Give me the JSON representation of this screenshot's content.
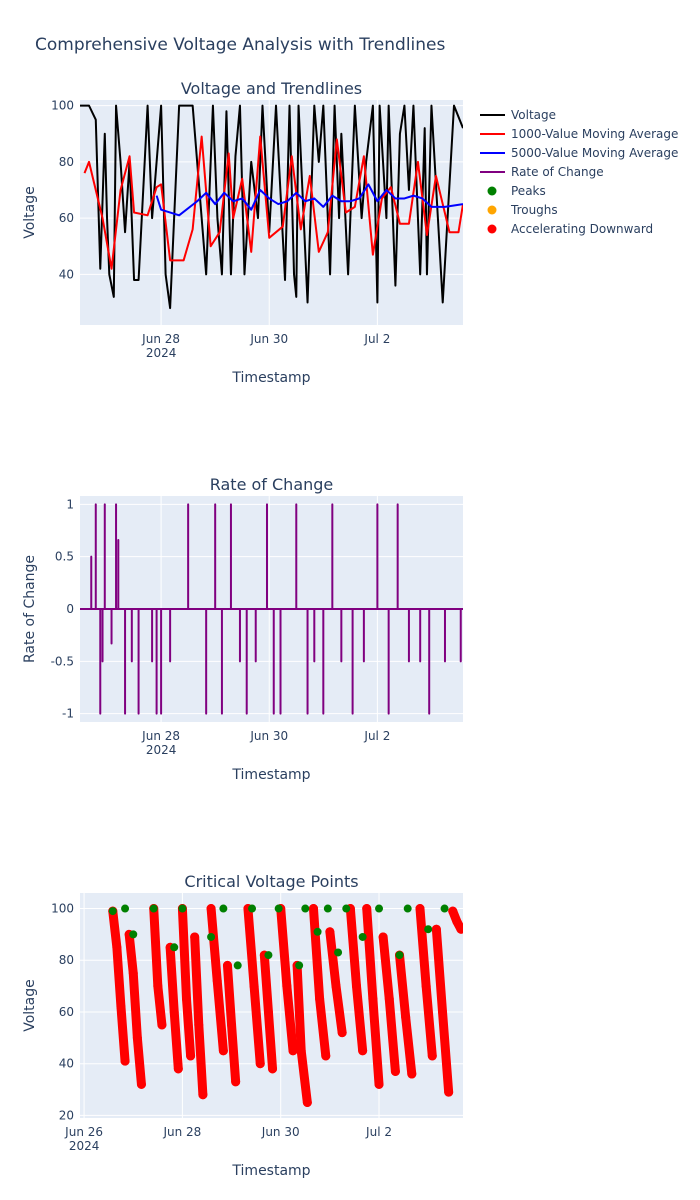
{
  "title": "Comprehensive Voltage Analysis with Trendlines",
  "colors": {
    "plot_bg": "#e5ecf6",
    "grid": "#ffffff",
    "voltage": "#000000",
    "ma1000": "#ff0000",
    "ma5000": "#0000ff",
    "rate": "#800080",
    "peaks": "#008000",
    "troughs": "#ffa500",
    "accel": "#ff0000"
  },
  "legend": {
    "position": "top-right",
    "entries": [
      {
        "label": "Voltage",
        "kind": "line",
        "color": "#000000"
      },
      {
        "label": "1000-Value Moving Average",
        "kind": "line",
        "color": "#ff0000"
      },
      {
        "label": "5000-Value Moving Average",
        "kind": "line",
        "color": "#0000ff"
      },
      {
        "label": "Rate of Change",
        "kind": "line",
        "color": "#800080"
      },
      {
        "label": "Peaks",
        "kind": "marker",
        "color": "#008000"
      },
      {
        "label": "Troughs",
        "kind": "marker",
        "color": "#ffa500"
      },
      {
        "label": "Accelerating Downward",
        "kind": "marker",
        "color": "#ff0000"
      }
    ]
  },
  "chart_data": [
    {
      "type": "line",
      "title": "Voltage and Trendlines",
      "xlabel": "Timestamp",
      "ylabel": "Voltage",
      "xlim": [
        "2024-06-26 12:00",
        "2024-07-03 14:00"
      ],
      "ylim": [
        22,
        102
      ],
      "grid": true,
      "x_ticks": [
        "Jun 28",
        "Jun 30",
        "Jul 2"
      ],
      "x_tick_values": [
        "2024-06-28",
        "2024-06-30",
        "2024-07-02"
      ],
      "x_year_label": "2024",
      "y_ticks": [
        40,
        60,
        80,
        100
      ],
      "series": [
        {
          "name": "Voltage",
          "x": [
            "2024-06-26 12:00",
            "2024-06-26 16:00",
            "2024-06-26 19:00",
            "2024-06-26 21:00",
            "2024-06-26 23:00",
            "2024-06-27 00:00",
            "2024-06-27 01:00",
            "2024-06-27 03:00",
            "2024-06-27 04:00",
            "2024-06-27 06:00",
            "2024-06-27 08:00",
            "2024-06-27 10:00",
            "2024-06-27 12:00",
            "2024-06-27 14:00",
            "2024-06-27 18:00",
            "2024-06-27 20:00",
            "2024-06-27 22:00",
            "2024-06-28 00:00",
            "2024-06-28 02:00",
            "2024-06-28 04:00",
            "2024-06-28 08:00",
            "2024-06-28 14:00",
            "2024-06-28 20:00",
            "2024-06-28 23:00",
            "2024-06-29 01:00",
            "2024-06-29 03:00",
            "2024-06-29 05:00",
            "2024-06-29 07:00",
            "2024-06-29 09:00",
            "2024-06-29 11:00",
            "2024-06-29 13:00",
            "2024-06-29 16:00",
            "2024-06-29 19:00",
            "2024-06-29 21:00",
            "2024-06-30 00:00",
            "2024-06-30 03:00",
            "2024-06-30 07:00",
            "2024-06-30 09:00",
            "2024-06-30 11:00",
            "2024-06-30 12:00",
            "2024-06-30 13:00",
            "2024-06-30 17:00",
            "2024-06-30 20:00",
            "2024-06-30 22:00",
            "2024-07-01 00:00",
            "2024-07-01 03:00",
            "2024-07-01 05:00",
            "2024-07-01 07:00",
            "2024-07-01 08:00",
            "2024-07-01 11:00",
            "2024-07-01 14:00",
            "2024-07-01 17:00",
            "2024-07-01 19:00",
            "2024-07-01 22:00",
            "2024-07-02 00:00",
            "2024-07-02 01:00",
            "2024-07-02 04:00",
            "2024-07-02 05:00",
            "2024-07-02 08:00",
            "2024-07-02 10:00",
            "2024-07-02 12:00",
            "2024-07-02 14:00",
            "2024-07-02 16:00",
            "2024-07-02 19:00",
            "2024-07-02 21:00",
            "2024-07-02 22:00",
            "2024-07-03 00:00",
            "2024-07-03 05:00",
            "2024-07-03 10:00",
            "2024-07-03 14:00"
          ],
          "values": [
            100,
            100,
            95,
            42,
            90,
            60,
            40,
            32,
            100,
            80,
            55,
            80,
            38,
            38,
            100,
            60,
            80,
            100,
            40,
            28,
            100,
            100,
            40,
            100,
            60,
            40,
            98,
            40,
            82,
            100,
            40,
            80,
            60,
            100,
            55,
            100,
            38,
            100,
            40,
            32,
            100,
            30,
            100,
            80,
            100,
            40,
            100,
            60,
            90,
            40,
            100,
            60,
            80,
            100,
            30,
            100,
            60,
            100,
            36,
            90,
            100,
            70,
            100,
            40,
            92,
            40,
            100,
            30,
            100,
            92
          ]
        },
        {
          "name": "1000-Value Moving Average",
          "x": [
            "2024-06-26 14:00",
            "2024-06-26 16:00",
            "2024-06-26 22:00",
            "2024-06-27 02:00",
            "2024-06-27 06:00",
            "2024-06-27 10:00",
            "2024-06-27 12:00",
            "2024-06-27 18:00",
            "2024-06-27 22:00",
            "2024-06-28 00:00",
            "2024-06-28 04:00",
            "2024-06-28 10:00",
            "2024-06-28 14:00",
            "2024-06-28 18:00",
            "2024-06-28 22:00",
            "2024-06-29 02:00",
            "2024-06-29 06:00",
            "2024-06-29 08:00",
            "2024-06-29 12:00",
            "2024-06-29 16:00",
            "2024-06-29 20:00",
            "2024-06-30 00:00",
            "2024-06-30 06:00",
            "2024-06-30 10:00",
            "2024-06-30 14:00",
            "2024-06-30 18:00",
            "2024-06-30 22:00",
            "2024-07-01 02:00",
            "2024-07-01 06:00",
            "2024-07-01 10:00",
            "2024-07-01 14:00",
            "2024-07-01 18:00",
            "2024-07-01 22:00",
            "2024-07-02 02:00",
            "2024-07-02 06:00",
            "2024-07-02 10:00",
            "2024-07-02 14:00",
            "2024-07-02 18:00",
            "2024-07-02 22:00",
            "2024-07-03 02:00",
            "2024-07-03 08:00",
            "2024-07-03 12:00",
            "2024-07-03 14:00"
          ],
          "values": [
            76,
            80,
            60,
            42,
            70,
            82,
            62,
            61,
            71,
            72,
            45,
            45,
            56,
            89,
            50,
            55,
            83,
            60,
            74,
            48,
            89,
            53,
            57,
            82,
            56,
            75,
            48,
            55,
            88,
            62,
            64,
            82,
            47,
            67,
            71,
            58,
            58,
            80,
            54,
            75,
            55,
            55,
            65
          ]
        },
        {
          "name": "5000-Value Moving Average",
          "x": [
            "2024-06-27 22:00",
            "2024-06-28 00:00",
            "2024-06-28 08:00",
            "2024-06-28 16:00",
            "2024-06-28 20:00",
            "2024-06-29 00:00",
            "2024-06-29 04:00",
            "2024-06-29 08:00",
            "2024-06-29 12:00",
            "2024-06-29 16:00",
            "2024-06-29 20:00",
            "2024-06-30 00:00",
            "2024-06-30 04:00",
            "2024-06-30 08:00",
            "2024-06-30 12:00",
            "2024-06-30 16:00",
            "2024-06-30 20:00",
            "2024-07-01 00:00",
            "2024-07-01 04:00",
            "2024-07-01 08:00",
            "2024-07-01 12:00",
            "2024-07-01 16:00",
            "2024-07-01 20:00",
            "2024-07-02 00:00",
            "2024-07-02 04:00",
            "2024-07-02 08:00",
            "2024-07-02 12:00",
            "2024-07-02 16:00",
            "2024-07-02 20:00",
            "2024-07-03 00:00",
            "2024-07-03 06:00",
            "2024-07-03 14:00"
          ],
          "values": [
            68,
            63,
            61,
            66,
            69,
            65,
            69,
            66,
            67,
            63,
            70,
            67,
            65,
            66,
            69,
            66,
            67,
            64,
            68,
            66,
            66,
            67,
            72,
            66,
            70,
            67,
            67,
            68,
            67,
            64,
            64,
            65
          ]
        }
      ]
    },
    {
      "type": "line",
      "title": "Rate of Change",
      "xlabel": "Timestamp",
      "ylabel": "Rate of Change",
      "xlim": [
        "2024-06-26 12:00",
        "2024-07-03 14:00"
      ],
      "ylim": [
        -1.08,
        1.08
      ],
      "grid": true,
      "x_ticks": [
        "Jun 28",
        "Jun 30",
        "Jul 2"
      ],
      "x_tick_values": [
        "2024-06-28",
        "2024-06-30",
        "2024-07-02"
      ],
      "x_year_label": "2024",
      "y_ticks": [
        -1,
        -0.5,
        0,
        0.5,
        1
      ],
      "series": [
        {
          "name": "Rate of Change",
          "x": [
            "2024-06-26 17:00",
            "2024-06-26 19:00",
            "2024-06-26 21:00",
            "2024-06-26 22:00",
            "2024-06-26 23:00",
            "2024-06-27 02:00",
            "2024-06-27 04:00",
            "2024-06-27 05:00",
            "2024-06-27 08:00",
            "2024-06-27 11:00",
            "2024-06-27 14:00",
            "2024-06-27 20:00",
            "2024-06-27 22:00",
            "2024-06-28 00:00",
            "2024-06-28 04:00",
            "2024-06-28 12:00",
            "2024-06-28 20:00",
            "2024-06-29 00:00",
            "2024-06-29 03:00",
            "2024-06-29 07:00",
            "2024-06-29 11:00",
            "2024-06-29 14:00",
            "2024-06-29 18:00",
            "2024-06-29 23:00",
            "2024-06-30 02:00",
            "2024-06-30 05:00",
            "2024-06-30 12:00",
            "2024-06-30 17:00",
            "2024-06-30 20:00",
            "2024-07-01 00:00",
            "2024-07-01 04:00",
            "2024-07-01 08:00",
            "2024-07-01 13:00",
            "2024-07-01 18:00",
            "2024-07-02 00:00",
            "2024-07-02 05:00",
            "2024-07-02 09:00",
            "2024-07-02 14:00",
            "2024-07-02 19:00",
            "2024-07-02 23:00",
            "2024-07-03 06:00",
            "2024-07-03 13:00"
          ],
          "values": [
            0.5,
            1,
            -1,
            -0.5,
            1,
            -0.33,
            1,
            0.66,
            -1,
            -0.5,
            -1,
            -0.5,
            -1,
            -1,
            -0.5,
            1,
            -1,
            1,
            -1,
            1,
            -0.5,
            -1,
            -0.5,
            1,
            -1,
            -1,
            1,
            -1,
            -0.5,
            -1,
            1,
            -0.5,
            -1,
            -0.5,
            1,
            -1,
            1,
            -0.5,
            -0.5,
            -1,
            -0.5,
            -0.5
          ]
        }
      ]
    },
    {
      "type": "scatter",
      "title": "Critical Voltage Points",
      "xlabel": "Timestamp",
      "ylabel": "Voltage",
      "xlim": [
        "2024-06-25 22:00",
        "2024-07-03 17:00"
      ],
      "ylim": [
        19,
        106
      ],
      "grid": true,
      "x_ticks": [
        "Jun 26",
        "Jun 28",
        "Jun 30",
        "Jul 2"
      ],
      "x_tick_values": [
        "2024-06-26",
        "2024-06-28",
        "2024-06-30",
        "2024-07-02"
      ],
      "x_year_label": "2024",
      "y_ticks": [
        20,
        40,
        60,
        80,
        100
      ],
      "series": [
        {
          "name": "Peaks",
          "x": [
            "2024-06-26 14:00",
            "2024-06-26 20:00",
            "2024-06-27 00:00",
            "2024-06-27 10:00",
            "2024-06-27 20:00",
            "2024-06-28 00:00",
            "2024-06-28 14:00",
            "2024-06-28 20:00",
            "2024-06-29 03:00",
            "2024-06-29 10:00",
            "2024-06-29 18:00",
            "2024-06-29 23:00",
            "2024-06-30 09:00",
            "2024-06-30 12:00",
            "2024-06-30 18:00",
            "2024-06-30 23:00",
            "2024-07-01 04:00",
            "2024-07-01 08:00",
            "2024-07-01 16:00",
            "2024-07-02 00:00",
            "2024-07-02 10:00",
            "2024-07-02 14:00",
            "2024-07-03 00:00",
            "2024-07-03 08:00"
          ],
          "y": [
            99,
            100,
            90,
            100,
            85,
            100,
            89,
            100,
            78,
            100,
            82,
            100,
            78,
            100,
            91,
            100,
            83,
            100,
            89,
            100,
            82,
            100,
            92,
            100
          ]
        },
        {
          "name": "Troughs",
          "x": [],
          "y": []
        },
        {
          "name": "Accelerating Downward",
          "segments": [
            {
              "x": [
                "2024-06-26 14:00",
                "2024-06-26 16:00",
                "2024-06-26 18:00",
                "2024-06-26 20:00"
              ],
              "y": [
                99,
                85,
                62,
                41
              ]
            },
            {
              "x": [
                "2024-06-26 22:00",
                "2024-06-27 00:00",
                "2024-06-27 02:00",
                "2024-06-27 04:00"
              ],
              "y": [
                90,
                75,
                50,
                32
              ]
            },
            {
              "x": [
                "2024-06-27 10:00",
                "2024-06-27 12:00",
                "2024-06-27 14:00"
              ],
              "y": [
                100,
                70,
                55
              ]
            },
            {
              "x": [
                "2024-06-27 18:00",
                "2024-06-27 20:00",
                "2024-06-27 22:00"
              ],
              "y": [
                85,
                60,
                38
              ]
            },
            {
              "x": [
                "2024-06-28 00:00",
                "2024-06-28 02:00",
                "2024-06-28 04:00"
              ],
              "y": [
                100,
                65,
                43
              ]
            },
            {
              "x": [
                "2024-06-28 06:00",
                "2024-06-28 08:00",
                "2024-06-28 10:00"
              ],
              "y": [
                89,
                55,
                28
              ]
            },
            {
              "x": [
                "2024-06-28 14:00",
                "2024-06-28 17:00",
                "2024-06-28 20:00"
              ],
              "y": [
                100,
                72,
                45
              ]
            },
            {
              "x": [
                "2024-06-28 22:00",
                "2024-06-29 00:00",
                "2024-06-29 02:00"
              ],
              "y": [
                78,
                55,
                33
              ]
            },
            {
              "x": [
                "2024-06-29 08:00",
                "2024-06-29 11:00",
                "2024-06-29 14:00"
              ],
              "y": [
                100,
                70,
                40
              ]
            },
            {
              "x": [
                "2024-06-29 16:00",
                "2024-06-29 18:00",
                "2024-06-29 20:00"
              ],
              "y": [
                82,
                60,
                38
              ]
            },
            {
              "x": [
                "2024-06-30 00:00",
                "2024-06-30 03:00",
                "2024-06-30 06:00"
              ],
              "y": [
                100,
                70,
                45
              ]
            },
            {
              "x": [
                "2024-06-30 08:00",
                "2024-06-30 10:00",
                "2024-06-30 13:00"
              ],
              "y": [
                78,
                45,
                25
              ]
            },
            {
              "x": [
                "2024-06-30 16:00",
                "2024-06-30 19:00",
                "2024-06-30 22:00"
              ],
              "y": [
                100,
                65,
                43
              ]
            },
            {
              "x": [
                "2024-07-01 00:00",
                "2024-07-01 03:00",
                "2024-07-01 06:00"
              ],
              "y": [
                91,
                70,
                52
              ]
            },
            {
              "x": [
                "2024-07-01 10:00",
                "2024-07-01 13:00",
                "2024-07-01 16:00"
              ],
              "y": [
                100,
                70,
                45
              ]
            },
            {
              "x": [
                "2024-07-01 18:00",
                "2024-07-01 21:00",
                "2024-07-02 00:00"
              ],
              "y": [
                100,
                65,
                32
              ]
            },
            {
              "x": [
                "2024-07-02 02:00",
                "2024-07-02 05:00",
                "2024-07-02 08:00"
              ],
              "y": [
                89,
                65,
                37
              ]
            },
            {
              "x": [
                "2024-07-02 10:00",
                "2024-07-02 13:00",
                "2024-07-02 16:00"
              ],
              "y": [
                82,
                58,
                36
              ]
            },
            {
              "x": [
                "2024-07-02 20:00",
                "2024-07-02 23:00",
                "2024-07-03 02:00"
              ],
              "y": [
                100,
                70,
                43
              ]
            },
            {
              "x": [
                "2024-07-03 04:00",
                "2024-07-03 07:00",
                "2024-07-03 10:00"
              ],
              "y": [
                92,
                60,
                29
              ]
            },
            {
              "x": [
                "2024-07-03 12:00",
                "2024-07-03 14:00",
                "2024-07-03 16:00"
              ],
              "y": [
                99,
                95,
                92
              ]
            }
          ]
        }
      ]
    }
  ]
}
